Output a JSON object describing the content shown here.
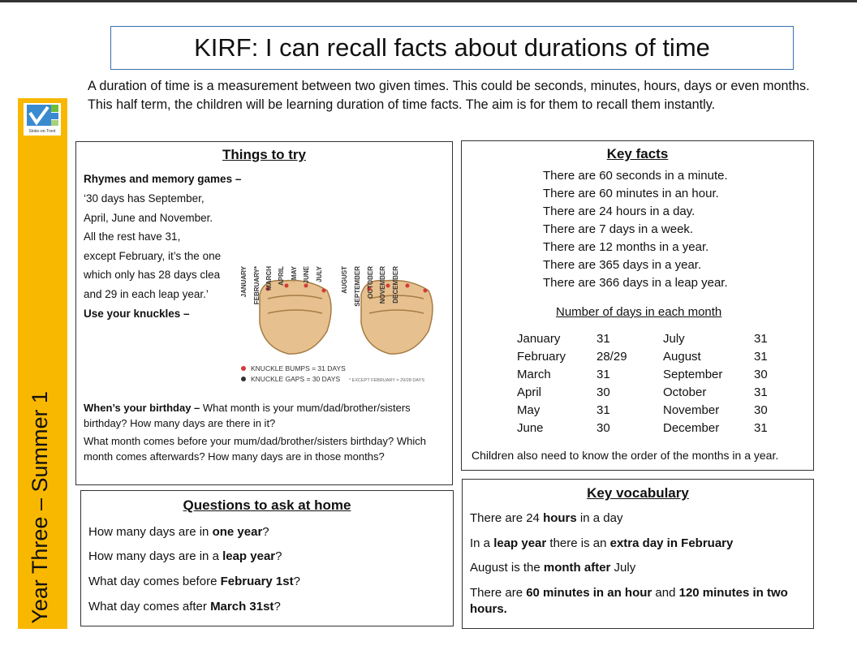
{
  "title": "KIRF: I can recall facts about durations of time",
  "intro": "A duration of time is a measurement between two given times. This could be seconds, minutes, hours, days or even months. This half term, the children will be learning duration of time facts. The aim is for them to recall them instantly.",
  "sidebar": "Year Three – Summer 1",
  "logo_text": "Stoke-on-Trent",
  "things_to_try": {
    "heading": "Things to try",
    "rhymes_heading": "Rhymes and memory games –",
    "rhyme_lines": [
      "‘30 days has September,",
      "April, June and November.",
      "All the rest have 31,",
      "except February, it’s the one",
      "which only has 28 days clea",
      "and 29 in each leap year.’"
    ],
    "knuckles_heading": "Use your knuckles –",
    "knuckle_months": [
      "JANUARY",
      "FEBRUARY*",
      "MARCH",
      "APRIL",
      "MAY",
      "JUNE",
      "JULY",
      "AUGUST",
      "SEPTEMBER",
      "OCTOBER",
      "NOVEMBER",
      "DECEMBER"
    ],
    "legend": [
      "KNUCKLE BUMPS = 31 DAYS",
      "KNUCKLE GAPS = 30 DAYS"
    ],
    "legend_note": "* EXCEPT FEBRUARY = 29/28 DAYS",
    "birthday_heading": "When’s your birthday –",
    "birthday_paragraphs": [
      "What month is your mum/dad/brother/sisters birthday? How many days are there in it?",
      "What month comes before your mum/dad/brother/sisters birthday? Which month comes afterwards? How many days are in those months?"
    ]
  },
  "key_facts": {
    "heading": "Key facts",
    "facts": [
      "There are 60 seconds in a minute.",
      "There are 60 minutes in an hour.",
      "There are 24 hours in a day.",
      "There are 7 days in a week.",
      "There are 12 months in a year.",
      "There are 365 days in a year.",
      "There are 366 days in a leap year."
    ],
    "table_heading": "Number of days in each month",
    "table_rows": [
      [
        "January",
        "31",
        "July",
        "31"
      ],
      [
        "February",
        "28/29",
        "August",
        "31"
      ],
      [
        "March",
        "31",
        "September",
        "30"
      ],
      [
        "April",
        "30",
        "October",
        "31"
      ],
      [
        "May",
        "31",
        "November",
        "30"
      ],
      [
        "June",
        "30",
        "December",
        "31"
      ]
    ],
    "note": "Children also need to know the order of the months in a year."
  },
  "questions": {
    "heading": "Questions to ask at home",
    "items": [
      [
        "How many days are in ",
        "one year",
        "?"
      ],
      [
        "How many days are in a ",
        "leap year",
        "?"
      ],
      [
        "What day comes before ",
        "February 1st",
        "?"
      ],
      [
        "What day comes after ",
        "March 31st",
        "?"
      ]
    ]
  },
  "vocabulary": {
    "heading": "Key vocabulary",
    "items": [
      [
        "There are 24 ",
        "hours",
        " in a day"
      ],
      [
        "In a ",
        "leap year",
        " there is an ",
        "extra day in February"
      ],
      [
        "August is the ",
        "month after",
        " July"
      ],
      [
        "There are ",
        "60 minutes in an hour",
        " and ",
        "120 minutes in two hours."
      ]
    ]
  }
}
